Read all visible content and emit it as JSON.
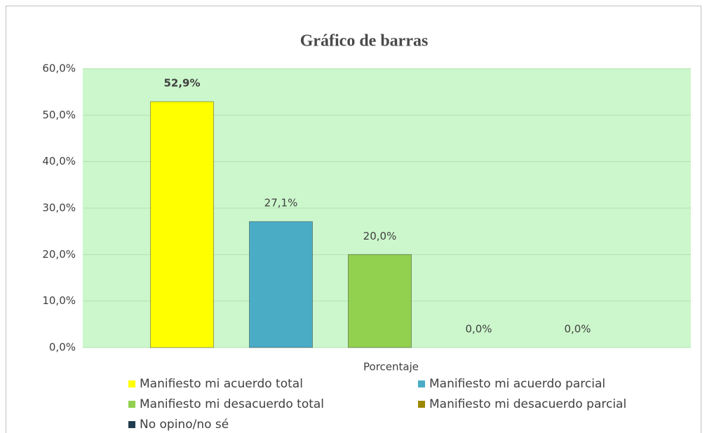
{
  "chart_data": {
    "type": "bar",
    "title": "Gráfico de barras",
    "categories": [
      "Porcentaje"
    ],
    "series": [
      {
        "name": "Manifiesto mi acuerdo total",
        "color": "#ffff00",
        "values": [
          52.9
        ],
        "value_labels": [
          "52,9%"
        ]
      },
      {
        "name": "Manifiesto mi acuerdo parcial",
        "color": "#4bacc6",
        "values": [
          27.1
        ],
        "value_labels": [
          "27,1%"
        ]
      },
      {
        "name": "Manifiesto mi desacuerdo total",
        "color": "#92d050",
        "values": [
          20.0
        ],
        "value_labels": [
          "20,0%"
        ]
      },
      {
        "name": "Manifiesto mi desacuerdo parcial",
        "color": "#9c8800",
        "values": [
          0.0
        ],
        "value_labels": [
          "0,0%"
        ]
      },
      {
        "name": "No opino/no sé",
        "color": "#1f3d4f",
        "values": [
          0.0
        ],
        "value_labels": [
          "0,0%"
        ]
      }
    ],
    "ylim": [
      0,
      60
    ],
    "yticks": [
      {
        "value": 0,
        "label": "0,0%"
      },
      {
        "value": 10,
        "label": "10,0%"
      },
      {
        "value": 20,
        "label": "20,0%"
      },
      {
        "value": 30,
        "label": "30,0%"
      },
      {
        "value": 40,
        "label": "40,0%"
      },
      {
        "value": 50,
        "label": "50,0%"
      },
      {
        "value": 60,
        "label": "60,0%"
      }
    ],
    "grid": true,
    "legend": "bottom"
  }
}
